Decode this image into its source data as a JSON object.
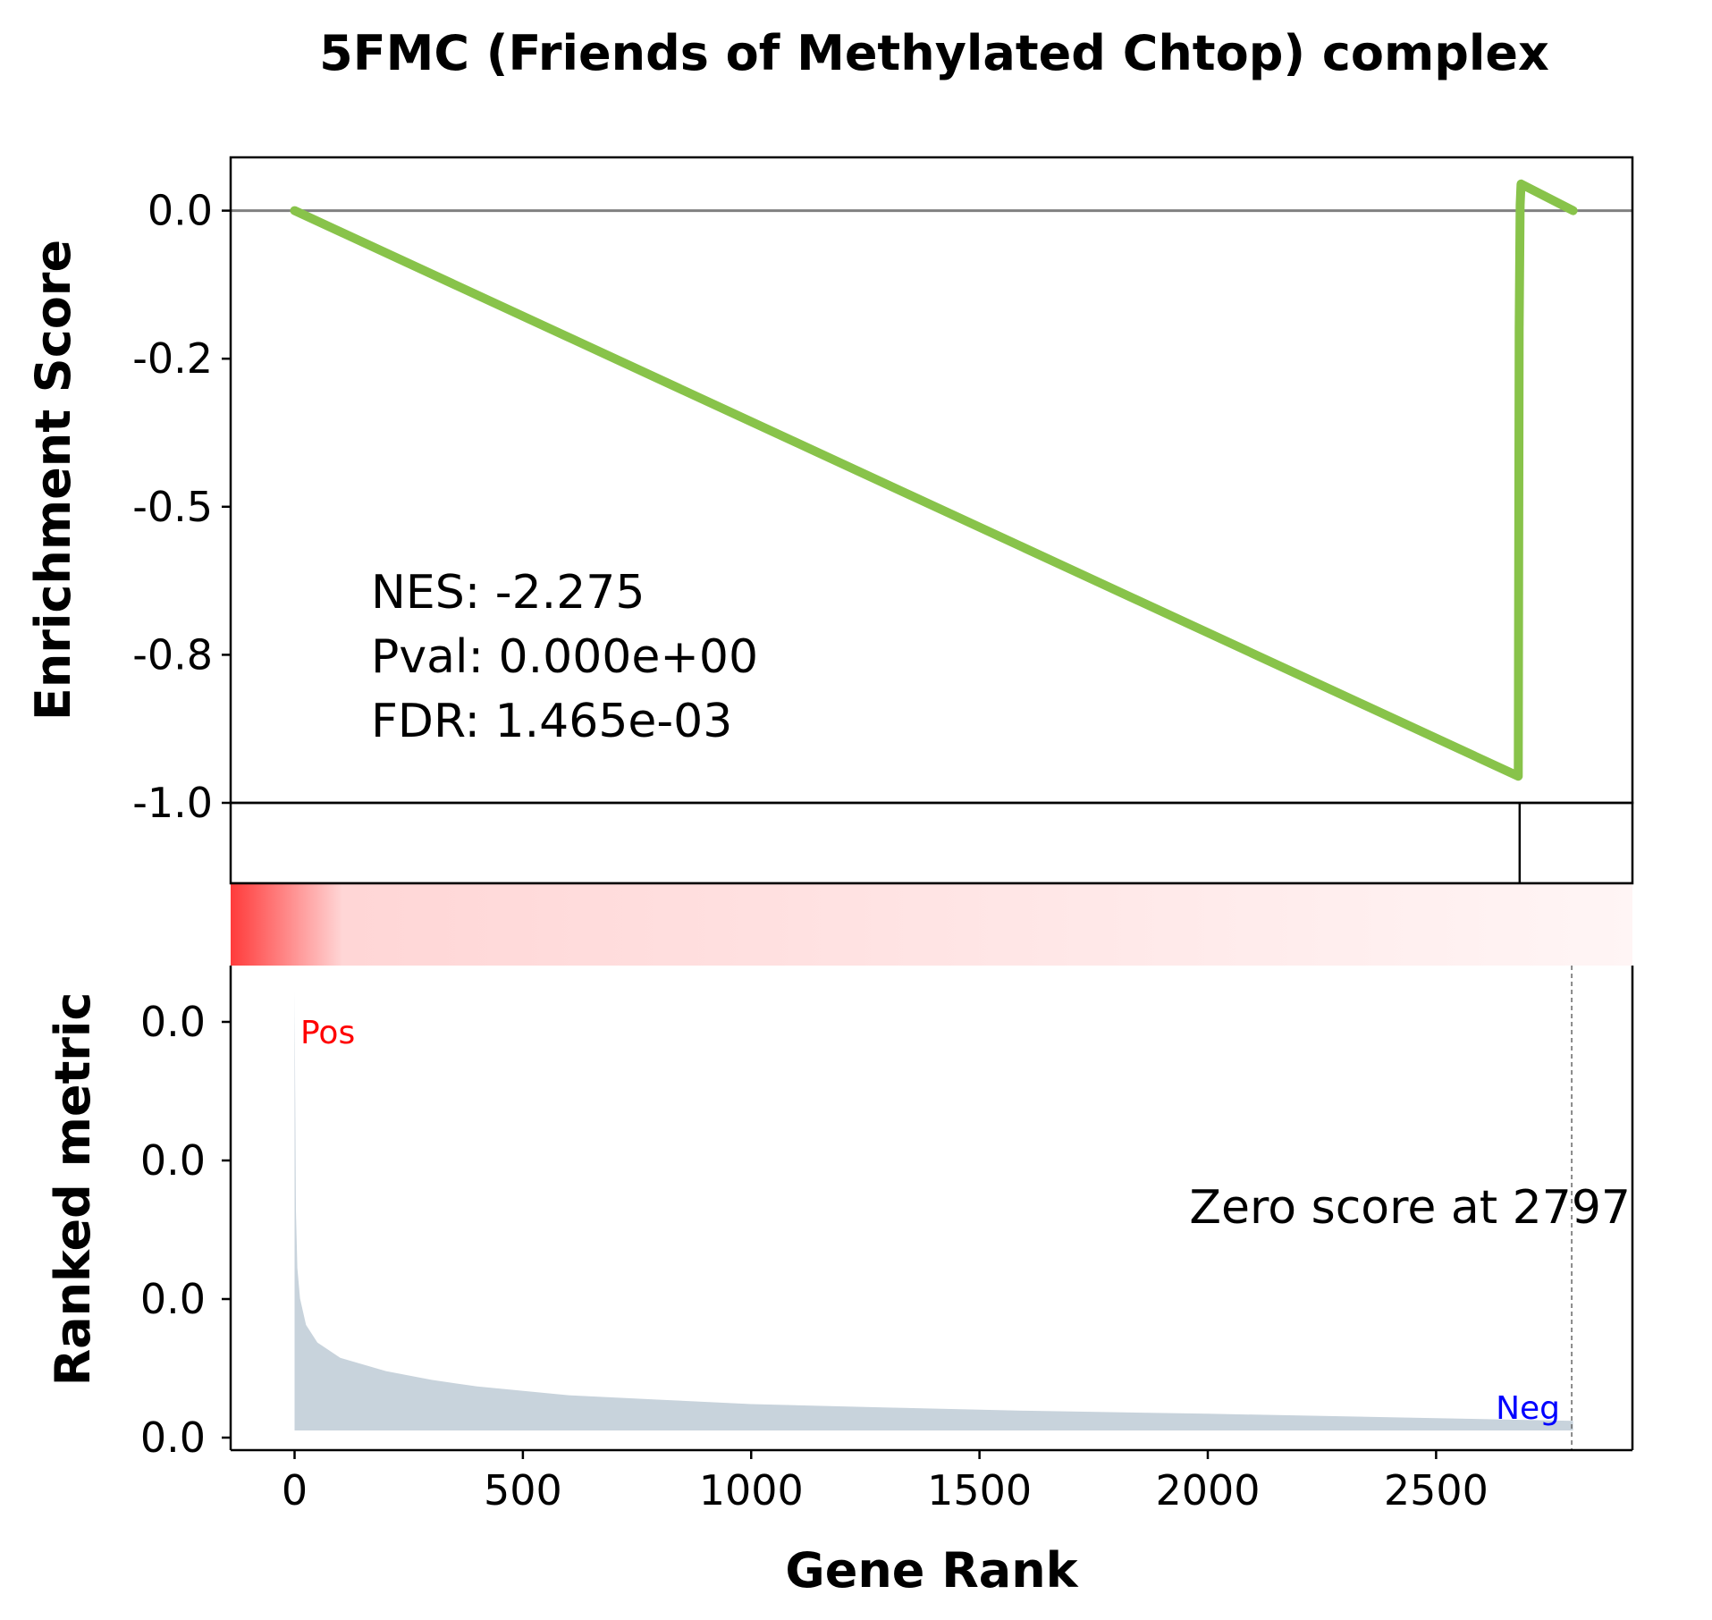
{
  "chart_data": {
    "type": "line",
    "title": "5FMC (Friends of Methylated Chtop) complex",
    "xlabel": "Gene Rank",
    "x_ticks": [
      "0",
      "500",
      "1000",
      "1500",
      "2000",
      "2500"
    ],
    "x_tick_values": [
      0,
      500,
      1000,
      1500,
      2000,
      2500
    ],
    "xlim": [
      -140,
      2930
    ],
    "panels": {
      "enrichment": {
        "ylabel": "Enrichment Score",
        "y_ticks": [
          "0.0",
          "-0.2",
          "-0.5",
          "-0.8",
          "-1.0"
        ],
        "y_tick_values": [
          0.0,
          -0.25,
          -0.5,
          -0.75,
          -1.0
        ],
        "ylim": [
          -1.0,
          0.09
        ],
        "series": [
          {
            "x": [
              0,
              2680,
              2682,
              2684,
              2686,
              2800
            ],
            "y": [
              0.0,
              -0.955,
              -0.2,
              0.01,
              0.045,
              0.0
            ]
          }
        ],
        "line_color": "#88c34a",
        "zero_line_color": "#808080",
        "stats": {
          "nes": "NES: -2.275",
          "pval": "Pval: 0.000e+00",
          "fdr": "FDR: 1.465e-03"
        }
      },
      "hits": {
        "hit_positions": [
          2683
        ]
      },
      "heatmap": {
        "gradient_start": "#ff3b3b",
        "gradient_mid": "#ffd6d6",
        "gradient_end": "#fff5f5"
      },
      "ranked_metric": {
        "ylabel": "Ranked metric",
        "y_ticks": [
          "0.0",
          "0.0",
          "0.0",
          "0.0"
        ],
        "fill_color": "#c8d3dc",
        "zero_score_text": "Zero score at 2797",
        "zero_score_rank": 2797,
        "pos_label": "Pos",
        "neg_label": "Neg",
        "pos_color": "#ff0000",
        "neg_color": "#0000ff",
        "profile": {
          "x": [
            0,
            3,
            6,
            12,
            25,
            50,
            100,
            200,
            300,
            400,
            600,
            800,
            1000,
            1300,
            1600,
            2000,
            2400,
            2800
          ],
          "y": [
            1.0,
            0.5,
            0.37,
            0.3,
            0.24,
            0.2,
            0.165,
            0.135,
            0.115,
            0.1,
            0.08,
            0.07,
            0.06,
            0.052,
            0.045,
            0.038,
            0.03,
            0.022
          ]
        }
      }
    }
  }
}
